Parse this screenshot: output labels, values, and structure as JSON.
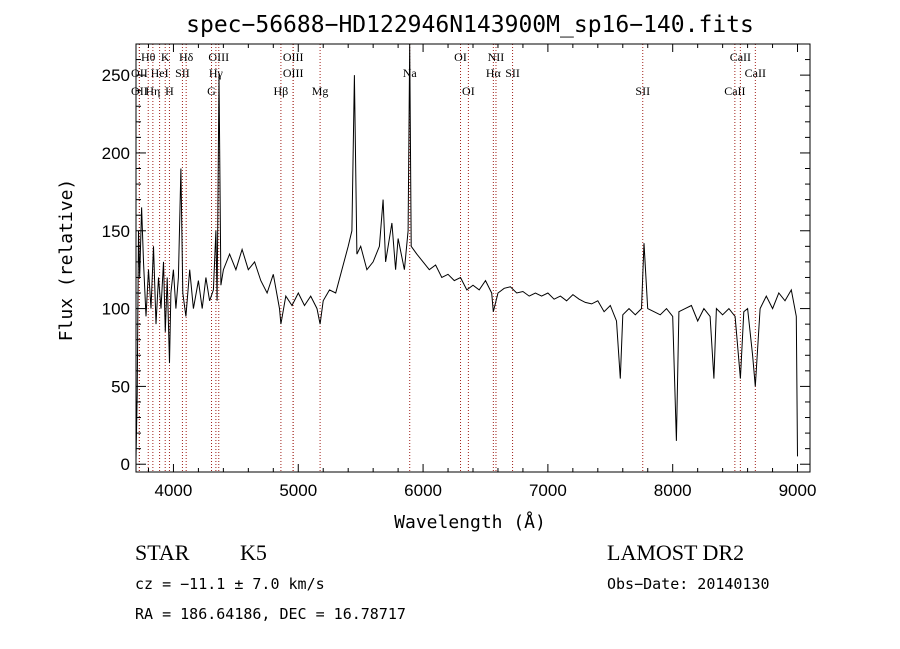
{
  "chart_data": {
    "type": "line",
    "title": "spec−56688−HD122946N143900M_sp16−140.fits",
    "xlabel": "Wavelength (Å)",
    "ylabel": "Flux (relative)",
    "xlim": [
      3700,
      9100
    ],
    "ylim": [
      -5,
      270
    ],
    "xticks": [
      4000,
      5000,
      6000,
      7000,
      8000,
      9000
    ],
    "yticks": [
      0,
      50,
      100,
      150,
      200,
      250
    ],
    "grid": false,
    "series": [
      {
        "values_desc": "spectrum flux vs wavelength",
        "points": [
          [
            3700,
            3
          ],
          [
            3710,
            45
          ],
          [
            3720,
            150
          ],
          [
            3730,
            120
          ],
          [
            3745,
            165
          ],
          [
            3760,
            130
          ],
          [
            3780,
            95
          ],
          [
            3800,
            125
          ],
          [
            3820,
            100
          ],
          [
            3840,
            140
          ],
          [
            3860,
            90
          ],
          [
            3880,
            120
          ],
          [
            3900,
            100
          ],
          [
            3920,
            130
          ],
          [
            3935,
            85
          ],
          [
            3950,
            120
          ],
          [
            3968,
            65
          ],
          [
            3980,
            110
          ],
          [
            4000,
            125
          ],
          [
            4020,
            100
          ],
          [
            4040,
            120
          ],
          [
            4060,
            190
          ],
          [
            4075,
            110
          ],
          [
            4100,
            95
          ],
          [
            4130,
            125
          ],
          [
            4160,
            100
          ],
          [
            4200,
            118
          ],
          [
            4230,
            100
          ],
          [
            4260,
            120
          ],
          [
            4290,
            105
          ],
          [
            4320,
            112
          ],
          [
            4340,
            150
          ],
          [
            4350,
            105
          ],
          [
            4365,
            250
          ],
          [
            4380,
            115
          ],
          [
            4400,
            125
          ],
          [
            4450,
            135
          ],
          [
            4500,
            125
          ],
          [
            4550,
            138
          ],
          [
            4600,
            125
          ],
          [
            4650,
            130
          ],
          [
            4700,
            118
          ],
          [
            4750,
            110
          ],
          [
            4800,
            122
          ],
          [
            4850,
            100
          ],
          [
            4861,
            90
          ],
          [
            4900,
            108
          ],
          [
            4950,
            102
          ],
          [
            5000,
            110
          ],
          [
            5050,
            102
          ],
          [
            5100,
            108
          ],
          [
            5150,
            100
          ],
          [
            5175,
            90
          ],
          [
            5200,
            105
          ],
          [
            5250,
            112
          ],
          [
            5300,
            110
          ],
          [
            5350,
            125
          ],
          [
            5400,
            140
          ],
          [
            5430,
            150
          ],
          [
            5450,
            250
          ],
          [
            5470,
            135
          ],
          [
            5500,
            140
          ],
          [
            5550,
            125
          ],
          [
            5600,
            130
          ],
          [
            5650,
            140
          ],
          [
            5680,
            170
          ],
          [
            5700,
            130
          ],
          [
            5750,
            155
          ],
          [
            5780,
            125
          ],
          [
            5800,
            145
          ],
          [
            5850,
            125
          ],
          [
            5880,
            150
          ],
          [
            5893,
            275
          ],
          [
            5905,
            140
          ],
          [
            5950,
            135
          ],
          [
            6000,
            130
          ],
          [
            6050,
            125
          ],
          [
            6100,
            128
          ],
          [
            6150,
            120
          ],
          [
            6200,
            122
          ],
          [
            6250,
            118
          ],
          [
            6300,
            120
          ],
          [
            6350,
            112
          ],
          [
            6400,
            115
          ],
          [
            6450,
            112
          ],
          [
            6500,
            118
          ],
          [
            6550,
            110
          ],
          [
            6563,
            98
          ],
          [
            6600,
            110
          ],
          [
            6650,
            113
          ],
          [
            6700,
            114
          ],
          [
            6750,
            110
          ],
          [
            6800,
            111
          ],
          [
            6850,
            108
          ],
          [
            6900,
            110
          ],
          [
            6950,
            108
          ],
          [
            7000,
            110
          ],
          [
            7050,
            106
          ],
          [
            7100,
            108
          ],
          [
            7150,
            105
          ],
          [
            7200,
            109
          ],
          [
            7250,
            106
          ],
          [
            7300,
            104
          ],
          [
            7350,
            103
          ],
          [
            7400,
            105
          ],
          [
            7450,
            98
          ],
          [
            7500,
            102
          ],
          [
            7550,
            92
          ],
          [
            7580,
            55
          ],
          [
            7600,
            96
          ],
          [
            7650,
            100
          ],
          [
            7700,
            96
          ],
          [
            7750,
            100
          ],
          [
            7770,
            142
          ],
          [
            7800,
            100
          ],
          [
            7850,
            98
          ],
          [
            7900,
            96
          ],
          [
            7950,
            100
          ],
          [
            8000,
            95
          ],
          [
            8030,
            15
          ],
          [
            8050,
            98
          ],
          [
            8100,
            100
          ],
          [
            8150,
            102
          ],
          [
            8200,
            92
          ],
          [
            8250,
            100
          ],
          [
            8300,
            95
          ],
          [
            8330,
            55
          ],
          [
            8350,
            100
          ],
          [
            8400,
            96
          ],
          [
            8450,
            100
          ],
          [
            8500,
            95
          ],
          [
            8542,
            55
          ],
          [
            8570,
            98
          ],
          [
            8600,
            100
          ],
          [
            8640,
            70
          ],
          [
            8662,
            50
          ],
          [
            8700,
            100
          ],
          [
            8750,
            108
          ],
          [
            8800,
            100
          ],
          [
            8850,
            110
          ],
          [
            8900,
            105
          ],
          [
            8950,
            112
          ],
          [
            8990,
            95
          ],
          [
            9000,
            5
          ]
        ]
      }
    ],
    "line_markers": [
      {
        "label": "Hθ",
        "wavelength": 3798,
        "row": 0
      },
      {
        "label": "K",
        "wavelength": 3934,
        "row": 0
      },
      {
        "label": "Hδ",
        "wavelength": 4102,
        "row": 0
      },
      {
        "label": "OIII",
        "wavelength": 4363,
        "row": 0
      },
      {
        "label": "OIII",
        "wavelength": 4959,
        "row": 0
      },
      {
        "label": "OI",
        "wavelength": 6300,
        "row": 0
      },
      {
        "label": "NII",
        "wavelength": 6584,
        "row": 0
      },
      {
        "label": "CaII",
        "wavelength": 8542,
        "row": 0
      },
      {
        "label": "OII",
        "wavelength": 3727,
        "row": 1
      },
      {
        "label": "HeI",
        "wavelength": 3889,
        "row": 1
      },
      {
        "label": "SII",
        "wavelength": 4072,
        "row": 1
      },
      {
        "label": "Hγ",
        "wavelength": 4340,
        "row": 1
      },
      {
        "label": "OIII",
        "wavelength": 4959,
        "row": 1
      },
      {
        "label": "Na",
        "wavelength": 5893,
        "row": 1
      },
      {
        "label": "Hα",
        "wavelength": 6563,
        "row": 1
      },
      {
        "label": "SII",
        "wavelength": 6717,
        "row": 1
      },
      {
        "label": "CaII",
        "wavelength": 8662,
        "row": 1
      },
      {
        "label": "OII",
        "wavelength": 3727,
        "row": 2
      },
      {
        "label": "Hη",
        "wavelength": 3835,
        "row": 2
      },
      {
        "label": "H",
        "wavelength": 3968,
        "row": 2
      },
      {
        "label": "G",
        "wavelength": 4305,
        "row": 2
      },
      {
        "label": "Hβ",
        "wavelength": 4861,
        "row": 2
      },
      {
        "label": "Mg",
        "wavelength": 5175,
        "row": 2
      },
      {
        "label": "OI",
        "wavelength": 6363,
        "row": 2
      },
      {
        "label": "SII",
        "wavelength": 7760,
        "row": 2
      },
      {
        "label": "CaII",
        "wavelength": 8498,
        "row": 2
      }
    ],
    "marker_color": "#a0201a"
  },
  "footer": {
    "class_label": "STAR",
    "subclass": "K5",
    "survey": "LAMOST DR2",
    "cz": "cz = −11.1 ± 7.0 km/s",
    "obs_date": "Obs−Date: 20140130",
    "coords": "RA = 186.64186, DEC =  16.78717"
  }
}
